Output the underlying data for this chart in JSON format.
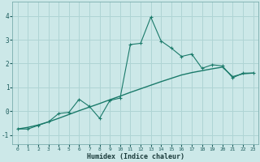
{
  "xlabel": "Humidex (Indice chaleur)",
  "background_color": "#cce8e8",
  "grid_color": "#afd4d4",
  "line_color": "#1a7a6a",
  "xlim": [
    -0.5,
    23.5
  ],
  "ylim": [
    -1.4,
    4.6
  ],
  "x_ticks": [
    0,
    1,
    2,
    3,
    4,
    5,
    6,
    7,
    8,
    9,
    10,
    11,
    12,
    13,
    14,
    15,
    16,
    17,
    18,
    19,
    20,
    21,
    22,
    23
  ],
  "y_ticks": [
    -1,
    0,
    1,
    2,
    3,
    4
  ],
  "jagged_x": [
    0,
    1,
    2,
    3,
    4,
    5,
    6,
    7,
    8,
    9,
    10,
    11,
    12,
    13,
    14,
    15,
    16,
    17,
    18,
    19,
    20,
    21,
    22,
    23
  ],
  "jagged_y": [
    -0.75,
    -0.75,
    -0.6,
    -0.45,
    -0.1,
    -0.05,
    0.5,
    0.2,
    -0.3,
    0.45,
    0.55,
    2.8,
    2.85,
    3.95,
    2.95,
    2.65,
    2.3,
    2.4,
    1.8,
    1.95,
    1.9,
    1.4,
    1.6,
    1.6
  ],
  "smooth_x": [
    0,
    1,
    2,
    3,
    4,
    5,
    6,
    7,
    8,
    9,
    10,
    11,
    12,
    13,
    14,
    15,
    16,
    17,
    18,
    19,
    20,
    21,
    22,
    23
  ],
  "smooth_y": [
    -0.75,
    -0.68,
    -0.58,
    -0.45,
    -0.3,
    -0.14,
    0.02,
    0.17,
    0.32,
    0.48,
    0.63,
    0.79,
    0.94,
    1.09,
    1.24,
    1.38,
    1.52,
    1.62,
    1.7,
    1.78,
    1.85,
    1.45,
    1.57,
    1.6
  ]
}
